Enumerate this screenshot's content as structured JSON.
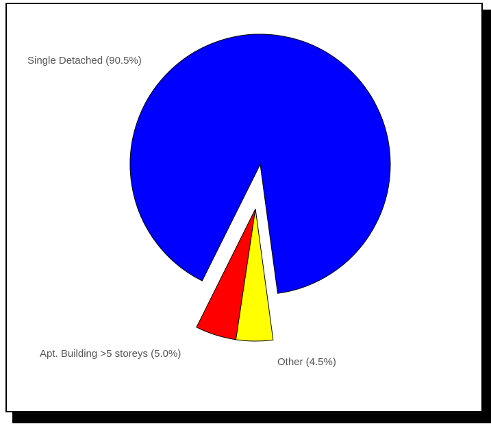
{
  "chart_data": {
    "type": "pie",
    "title": "",
    "slices": [
      {
        "label": "Single Detached (90.5%)",
        "value": 90.5,
        "color": "#0000ff"
      },
      {
        "label": "Apt. Building >5 storeys (5.0%)",
        "value": 5.0,
        "color": "#ff0000"
      },
      {
        "label": "Other (4.5%)",
        "value": 4.5,
        "color": "#ffff00"
      }
    ],
    "exploded": [
      "Apt. Building >5 storeys (5.0%)",
      "Other (4.5%)"
    ],
    "legend": "none"
  }
}
